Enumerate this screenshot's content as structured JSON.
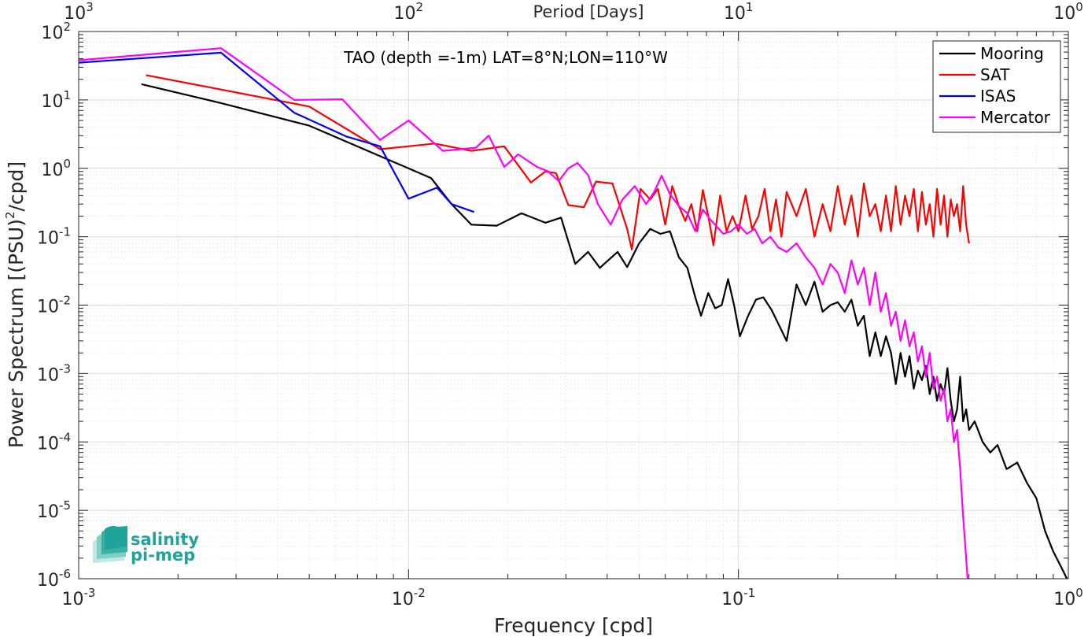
{
  "chart_data": {
    "type": "line",
    "title": "TAO (depth =-1m) LAT=8°N;LON=110°W",
    "xlabel": "Frequency [cpd]",
    "ylabel": "Power Spectrum [(PSU)²/cpd]",
    "ylabel_parts": {
      "base": "Power Spectrum [(PSU)",
      "sup": "2",
      "tail": "/cpd]"
    },
    "x2label": "Period [Days]",
    "xscale": "log",
    "yscale": "log",
    "xlim": [
      0.001,
      1
    ],
    "ylim": [
      1e-06,
      100
    ],
    "grid": true,
    "legend_location": "top-right",
    "x_ticks": [
      {
        "value": 0.001,
        "base": "10",
        "exp": "-3"
      },
      {
        "value": 0.01,
        "base": "10",
        "exp": "-2"
      },
      {
        "value": 0.1,
        "base": "10",
        "exp": "-1"
      },
      {
        "value": 1,
        "base": "10",
        "exp": "0"
      }
    ],
    "x2_ticks": [
      {
        "value": 1000,
        "base": "10",
        "exp": "3"
      },
      {
        "value": 100,
        "base": "10",
        "exp": "2"
      },
      {
        "value": 10,
        "base": "10",
        "exp": "1"
      },
      {
        "value": 1,
        "base": "10",
        "exp": "0"
      }
    ],
    "y_ticks": [
      {
        "value": 100,
        "base": "10",
        "exp": "2"
      },
      {
        "value": 10,
        "base": "10",
        "exp": "1"
      },
      {
        "value": 1,
        "base": "10",
        "exp": "0"
      },
      {
        "value": 0.1,
        "base": "10",
        "exp": "-1"
      },
      {
        "value": 0.01,
        "base": "10",
        "exp": "-2"
      },
      {
        "value": 0.001,
        "base": "10",
        "exp": "-3"
      },
      {
        "value": 0.0001,
        "base": "10",
        "exp": "-4"
      },
      {
        "value": 1e-05,
        "base": "10",
        "exp": "-5"
      },
      {
        "value": 1e-06,
        "base": "10",
        "exp": "-6"
      }
    ],
    "series": [
      {
        "name": "Mooring",
        "color": "#000000",
        "points": [
          [
            0.00155,
            17
          ],
          [
            0.0027,
            9
          ],
          [
            0.005,
            4.2
          ],
          [
            0.0085,
            1.4
          ],
          [
            0.0117,
            0.72
          ],
          [
            0.0135,
            0.3
          ],
          [
            0.0155,
            0.15
          ],
          [
            0.0185,
            0.145
          ],
          [
            0.022,
            0.22
          ],
          [
            0.026,
            0.16
          ],
          [
            0.029,
            0.19
          ],
          [
            0.032,
            0.04
          ],
          [
            0.035,
            0.06
          ],
          [
            0.038,
            0.035
          ],
          [
            0.043,
            0.06
          ],
          [
            0.046,
            0.036
          ],
          [
            0.05,
            0.08
          ],
          [
            0.054,
            0.13
          ],
          [
            0.058,
            0.11
          ],
          [
            0.062,
            0.12
          ],
          [
            0.066,
            0.05
          ],
          [
            0.07,
            0.035
          ],
          [
            0.074,
            0.013
          ],
          [
            0.077,
            0.007
          ],
          [
            0.081,
            0.015
          ],
          [
            0.085,
            0.009
          ],
          [
            0.089,
            0.01
          ],
          [
            0.093,
            0.024
          ],
          [
            0.097,
            0.01
          ],
          [
            0.101,
            0.0035
          ],
          [
            0.107,
            0.007
          ],
          [
            0.113,
            0.012
          ],
          [
            0.119,
            0.013
          ],
          [
            0.126,
            0.0085
          ],
          [
            0.133,
            0.005
          ],
          [
            0.14,
            0.003
          ],
          [
            0.15,
            0.02
          ],
          [
            0.16,
            0.01
          ],
          [
            0.17,
            0.022
          ],
          [
            0.18,
            0.008
          ],
          [
            0.19,
            0.01
          ],
          [
            0.2,
            0.011
          ],
          [
            0.21,
            0.008
          ],
          [
            0.22,
            0.012
          ],
          [
            0.23,
            0.005
          ],
          [
            0.24,
            0.007
          ],
          [
            0.25,
            0.0018
          ],
          [
            0.26,
            0.004
          ],
          [
            0.27,
            0.0018
          ],
          [
            0.28,
            0.0035
          ],
          [
            0.29,
            0.002
          ],
          [
            0.3,
            0.0007
          ],
          [
            0.31,
            0.002
          ],
          [
            0.32,
            0.0009
          ],
          [
            0.33,
            0.0018
          ],
          [
            0.34,
            0.0006
          ],
          [
            0.35,
            0.0011
          ],
          [
            0.36,
            0.0008
          ],
          [
            0.37,
            0.0013
          ],
          [
            0.38,
            0.0005
          ],
          [
            0.39,
            0.0009
          ],
          [
            0.4,
            0.0004
          ],
          [
            0.41,
            0.0007
          ],
          [
            0.42,
            0.0005
          ],
          [
            0.43,
            0.0012
          ],
          [
            0.44,
            0.0004
          ],
          [
            0.45,
            0.0002
          ],
          [
            0.46,
            0.0003
          ],
          [
            0.47,
            0.0009
          ],
          [
            0.48,
            0.0002
          ],
          [
            0.49,
            0.0003
          ],
          [
            0.5,
            0.00015
          ],
          [
            0.52,
            0.0002
          ],
          [
            0.55,
            0.0001
          ],
          [
            0.58,
            7e-05
          ],
          [
            0.61,
            9e-05
          ],
          [
            0.65,
            4e-05
          ],
          [
            0.7,
            5e-05
          ],
          [
            0.75,
            2.5e-05
          ],
          [
            0.8,
            1.5e-05
          ],
          [
            0.85,
            5e-06
          ],
          [
            0.9,
            2.5e-06
          ],
          [
            0.95,
            1.5e-06
          ],
          [
            0.99,
            1e-06
          ]
        ]
      },
      {
        "name": "SAT",
        "color": "#ff0000",
        "points": [
          [
            0.0016,
            23
          ],
          [
            0.005,
            8
          ],
          [
            0.0082,
            1.9
          ],
          [
            0.012,
            2.3
          ],
          [
            0.0155,
            1.8
          ],
          [
            0.0195,
            2.1
          ],
          [
            0.0235,
            0.62
          ],
          [
            0.026,
            0.9
          ],
          [
            0.028,
            0.85
          ],
          [
            0.0305,
            0.29
          ],
          [
            0.034,
            0.27
          ],
          [
            0.037,
            0.64
          ],
          [
            0.0415,
            0.6
          ],
          [
            0.046,
            0.13
          ],
          [
            0.0475,
            0.065
          ],
          [
            0.0505,
            0.5
          ],
          [
            0.054,
            0.35
          ],
          [
            0.057,
            0.5
          ],
          [
            0.06,
            0.15
          ],
          [
            0.063,
            0.55
          ],
          [
            0.066,
            0.28
          ],
          [
            0.069,
            0.17
          ],
          [
            0.072,
            0.3
          ],
          [
            0.075,
            0.12
          ],
          [
            0.078,
            0.48
          ],
          [
            0.081,
            0.2
          ],
          [
            0.084,
            0.075
          ],
          [
            0.088,
            0.4
          ],
          [
            0.092,
            0.12
          ],
          [
            0.096,
            0.2
          ],
          [
            0.1,
            0.12
          ],
          [
            0.105,
            0.4
          ],
          [
            0.11,
            0.13
          ],
          [
            0.115,
            0.2
          ],
          [
            0.12,
            0.5
          ],
          [
            0.125,
            0.12
          ],
          [
            0.13,
            0.35
          ],
          [
            0.135,
            0.1
          ],
          [
            0.14,
            0.45
          ],
          [
            0.15,
            0.2
          ],
          [
            0.16,
            0.5
          ],
          [
            0.17,
            0.1
          ],
          [
            0.18,
            0.3
          ],
          [
            0.19,
            0.12
          ],
          [
            0.2,
            0.55
          ],
          [
            0.21,
            0.15
          ],
          [
            0.22,
            0.4
          ],
          [
            0.23,
            0.1
          ],
          [
            0.24,
            0.6
          ],
          [
            0.25,
            0.2
          ],
          [
            0.26,
            0.3
          ],
          [
            0.27,
            0.12
          ],
          [
            0.28,
            0.4
          ],
          [
            0.29,
            0.12
          ],
          [
            0.3,
            0.55
          ],
          [
            0.31,
            0.15
          ],
          [
            0.32,
            0.4
          ],
          [
            0.33,
            0.2
          ],
          [
            0.34,
            0.5
          ],
          [
            0.35,
            0.12
          ],
          [
            0.36,
            0.45
          ],
          [
            0.37,
            0.15
          ],
          [
            0.38,
            0.3
          ],
          [
            0.39,
            0.1
          ],
          [
            0.4,
            0.5
          ],
          [
            0.41,
            0.15
          ],
          [
            0.42,
            0.4
          ],
          [
            0.43,
            0.1
          ],
          [
            0.44,
            0.35
          ],
          [
            0.45,
            0.2
          ],
          [
            0.46,
            0.3
          ],
          [
            0.47,
            0.12
          ],
          [
            0.48,
            0.55
          ],
          [
            0.49,
            0.15
          ],
          [
            0.5,
            0.08
          ]
        ]
      },
      {
        "name": "ISAS",
        "color": "#0000ff",
        "points": [
          [
            0.001,
            35
          ],
          [
            0.0027,
            49
          ],
          [
            0.0045,
            6.5
          ],
          [
            0.0065,
            2.9
          ],
          [
            0.0082,
            2.1
          ],
          [
            0.01,
            0.36
          ],
          [
            0.0122,
            0.52
          ],
          [
            0.0135,
            0.3
          ],
          [
            0.0158,
            0.23
          ]
        ]
      },
      {
        "name": "Mercator",
        "color": "#ff00ff",
        "points": [
          [
            0.001,
            38
          ],
          [
            0.0027,
            57
          ],
          [
            0.0045,
            10
          ],
          [
            0.0063,
            10.2
          ],
          [
            0.0082,
            2.6
          ],
          [
            0.01,
            5
          ],
          [
            0.0127,
            1.8
          ],
          [
            0.016,
            2.0
          ],
          [
            0.0175,
            3.0
          ],
          [
            0.0195,
            1.05
          ],
          [
            0.0215,
            1.6
          ],
          [
            0.0245,
            1.05
          ],
          [
            0.0265,
            0.9
          ],
          [
            0.0285,
            0.65
          ],
          [
            0.0305,
            1.0
          ],
          [
            0.0325,
            1.2
          ],
          [
            0.035,
            0.8
          ],
          [
            0.0375,
            0.3
          ],
          [
            0.041,
            0.15
          ],
          [
            0.0445,
            0.35
          ],
          [
            0.0485,
            0.55
          ],
          [
            0.0525,
            0.3
          ],
          [
            0.0555,
            0.45
          ],
          [
            0.0585,
            0.78
          ],
          [
            0.062,
            0.42
          ],
          [
            0.066,
            0.28
          ],
          [
            0.07,
            0.22
          ],
          [
            0.074,
            0.12
          ],
          [
            0.078,
            0.25
          ],
          [
            0.082,
            0.18
          ],
          [
            0.086,
            0.14
          ],
          [
            0.09,
            0.11
          ],
          [
            0.095,
            0.12
          ],
          [
            0.1,
            0.15
          ],
          [
            0.106,
            0.11
          ],
          [
            0.112,
            0.13
          ],
          [
            0.118,
            0.08
          ],
          [
            0.125,
            0.1
          ],
          [
            0.132,
            0.07
          ],
          [
            0.14,
            0.06
          ],
          [
            0.15,
            0.08
          ],
          [
            0.16,
            0.05
          ],
          [
            0.17,
            0.035
          ],
          [
            0.18,
            0.02
          ],
          [
            0.19,
            0.04
          ],
          [
            0.2,
            0.03
          ],
          [
            0.21,
            0.015
          ],
          [
            0.22,
            0.045
          ],
          [
            0.23,
            0.02
          ],
          [
            0.24,
            0.035
          ],
          [
            0.25,
            0.01
          ],
          [
            0.26,
            0.03
          ],
          [
            0.27,
            0.008
          ],
          [
            0.28,
            0.015
          ],
          [
            0.29,
            0.005
          ],
          [
            0.3,
            0.008
          ],
          [
            0.31,
            0.003
          ],
          [
            0.32,
            0.006
          ],
          [
            0.33,
            0.0025
          ],
          [
            0.34,
            0.004
          ],
          [
            0.35,
            0.0015
          ],
          [
            0.36,
            0.0025
          ],
          [
            0.37,
            0.0009
          ],
          [
            0.38,
            0.002
          ],
          [
            0.39,
            0.0006
          ],
          [
            0.4,
            0.0009
          ],
          [
            0.41,
            0.0004
          ],
          [
            0.42,
            0.0006
          ],
          [
            0.43,
            0.0002
          ],
          [
            0.44,
            0.0003
          ],
          [
            0.45,
            0.0001
          ],
          [
            0.46,
            0.00015
          ],
          [
            0.47,
            4e-05
          ],
          [
            0.48,
            8e-06
          ],
          [
            0.49,
            2e-06
          ],
          [
            0.495,
            1e-06
          ]
        ]
      }
    ]
  },
  "logo": {
    "line1": "salinity",
    "line2": "pi-mep",
    "color": "#20a39a"
  }
}
